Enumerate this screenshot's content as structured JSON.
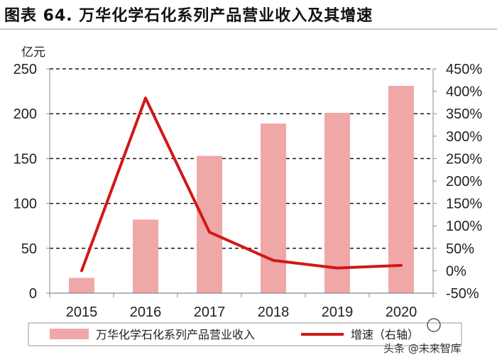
{
  "title": "图表 64. 万华化学石化系列产品营业收入及其增速",
  "chart_data": {
    "type": "bar",
    "categories": [
      "2015",
      "2016",
      "2017",
      "2018",
      "2019",
      "2020"
    ],
    "series": [
      {
        "name": "万华化学石化系列产品营业收入",
        "type": "bar",
        "axis": "left",
        "color": "#f0a7a7",
        "values": [
          17,
          82,
          153,
          189,
          201,
          231
        ]
      },
      {
        "name": "增速（右轴）",
        "type": "line",
        "axis": "right",
        "color": "#d01818",
        "values": [
          0,
          385,
          86,
          23,
          6,
          12
        ]
      }
    ],
    "ylabel": "亿元",
    "ylim": [
      0,
      250
    ],
    "yticks": [
      "0",
      "50",
      "100",
      "150",
      "200",
      "250"
    ],
    "y2lim": [
      -50,
      450
    ],
    "y2ticks": [
      "-50%",
      "0%",
      "50%",
      "100%",
      "150%",
      "200%",
      "250%",
      "300%",
      "350%",
      "400%",
      "450%"
    ],
    "grid": true,
    "legend_position": "bottom"
  },
  "watermark": "头条 @未来智库"
}
